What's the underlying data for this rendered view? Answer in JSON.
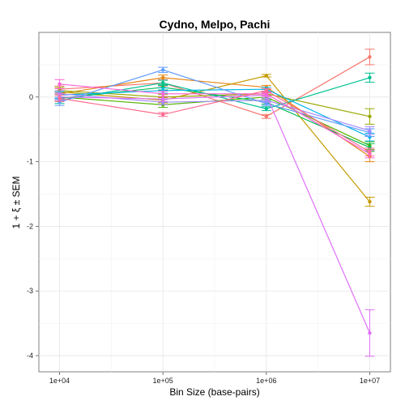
{
  "chart_data": {
    "type": "line",
    "title": "Cydno, Melpo, Pachi",
    "xlabel": "Bin Size (base-pairs)",
    "ylabel": "1 + ξ ± SEM",
    "x_scale": "log10",
    "x": [
      "1e+04",
      "1e+05",
      "1e+06",
      "1e+07"
    ],
    "x_values": [
      10000,
      100000,
      1000000,
      10000000
    ],
    "yticks": [
      0,
      -1,
      -2,
      -3,
      -4
    ],
    "ylim": [
      -4.25,
      1.0
    ],
    "grid": true,
    "legend": "none",
    "series": [
      {
        "color": "#f8766d",
        "values": [
          0.12,
          0.22,
          -0.3,
          0.62
        ],
        "sem": [
          0.05,
          0.05,
          0.03,
          0.12
        ]
      },
      {
        "color": "#e68613",
        "values": [
          0.05,
          0.3,
          0.15,
          -0.92
        ],
        "sem": [
          0.05,
          0.04,
          0.03,
          0.08
        ]
      },
      {
        "color": "#c49a00",
        "values": [
          0.08,
          -0.05,
          0.33,
          -1.62
        ],
        "sem": [
          0.05,
          0.04,
          0.02,
          0.07
        ]
      },
      {
        "color": "#99a800",
        "values": [
          0.1,
          0.0,
          0.05,
          -0.3
        ],
        "sem": [
          0.05,
          0.04,
          0.03,
          0.12
        ]
      },
      {
        "color": "#53b400",
        "values": [
          0.0,
          -0.12,
          0.0,
          -0.75
        ],
        "sem": [
          0.05,
          0.04,
          0.03,
          0.06
        ]
      },
      {
        "color": "#00bc56",
        "values": [
          -0.02,
          0.15,
          -0.08,
          -0.78
        ],
        "sem": [
          0.05,
          0.04,
          0.03,
          0.06
        ]
      },
      {
        "color": "#00c094",
        "values": [
          -0.05,
          0.22,
          -0.18,
          0.3
        ],
        "sem": [
          0.05,
          0.04,
          0.03,
          0.07
        ]
      },
      {
        "color": "#00b6eb",
        "values": [
          0.03,
          0.1,
          0.12,
          -0.62
        ],
        "sem": [
          0.05,
          0.04,
          0.03,
          0.06
        ]
      },
      {
        "color": "#619cff",
        "values": [
          -0.08,
          0.42,
          -0.1,
          -0.55
        ],
        "sem": [
          0.05,
          0.04,
          0.03,
          0.06
        ]
      },
      {
        "color": "#a58aff",
        "values": [
          0.05,
          -0.08,
          -0.05,
          -0.52
        ],
        "sem": [
          0.05,
          0.04,
          0.03,
          0.06
        ]
      },
      {
        "color": "#df70f8",
        "values": [
          0.0,
          -0.03,
          0.03,
          -3.65
        ],
        "sem": [
          0.05,
          0.04,
          0.03,
          0.36
        ]
      },
      {
        "color": "#fb61d7",
        "values": [
          0.2,
          0.05,
          0.05,
          -0.88
        ],
        "sem": [
          0.07,
          0.04,
          0.03,
          0.06
        ]
      },
      {
        "color": "#ff6c91",
        "values": [
          -0.02,
          -0.27,
          0.1,
          -0.85
        ],
        "sem": [
          0.05,
          0.03,
          0.03,
          0.06
        ]
      }
    ]
  }
}
